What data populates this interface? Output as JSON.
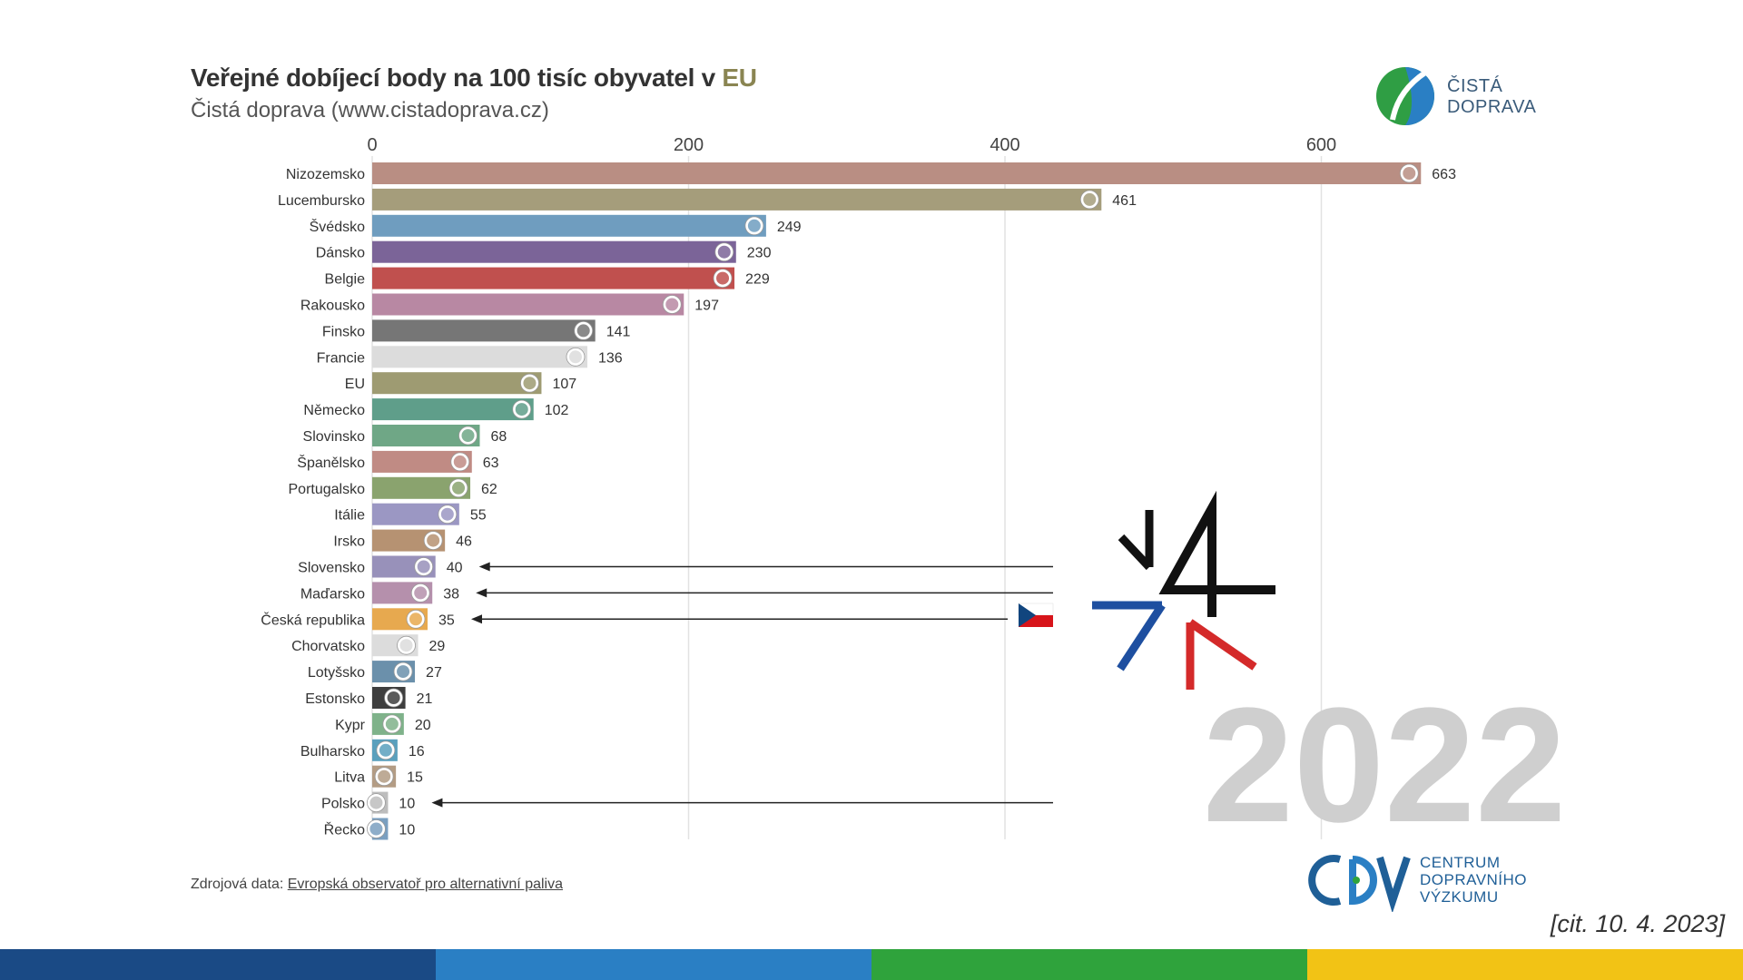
{
  "header": {
    "title_main": "Veřejné dobíjecí body na 100 tisíc obyvatel v ",
    "title_accent": "EU",
    "subtitle": "Čistá doprava (www.cistadoprava.cz)"
  },
  "logo_top": {
    "line1": "ČISTÁ",
    "line2": "DOPRAVA"
  },
  "chart_data": {
    "type": "bar",
    "orientation": "horizontal",
    "xlim": [
      0,
      700
    ],
    "ticks": [
      0,
      200,
      400,
      600
    ],
    "grid": true,
    "year": "2022",
    "categories": [
      "Nizozemsko",
      "Lucembursko",
      "Švédsko",
      "Dánsko",
      "Belgie",
      "Rakousko",
      "Finsko",
      "Francie",
      "EU",
      "Německo",
      "Slovinsko",
      "Španělsko",
      "Portugalsko",
      "Itálie",
      "Irsko",
      "Slovensko",
      "Maďarsko",
      "Česká republika",
      "Chorvatsko",
      "Lotyšsko",
      "Estonsko",
      "Kypr",
      "Bulharsko",
      "Litva",
      "Polsko",
      "Řecko"
    ],
    "values": [
      663,
      461,
      249,
      230,
      229,
      197,
      141,
      136,
      107,
      102,
      68,
      63,
      62,
      55,
      46,
      40,
      38,
      35,
      29,
      27,
      21,
      20,
      16,
      15,
      10,
      10
    ],
    "colors": [
      "#b98e83",
      "#a59d7b",
      "#6f9dbf",
      "#7b6498",
      "#c0504e",
      "#b888a3",
      "#767676",
      "#dcdcdc",
      "#9e9b72",
      "#5f9e8a",
      "#6fa786",
      "#c08b84",
      "#8aa36e",
      "#9b97c3",
      "#b69272",
      "#9891ba",
      "#b590ac",
      "#e7a94f",
      "#dcdcdc",
      "#6b90ab",
      "#3e3e3e",
      "#7fb28a",
      "#5aa0bd",
      "#b39c84",
      "#bdbdbd",
      "#7a9fc0"
    ],
    "highlighted": [
      "Slovensko",
      "Maďarsko",
      "Česká republika",
      "Polsko"
    ]
  },
  "footer": {
    "source_prefix": "Zdrojová data: ",
    "source_link": "Evropská observatoř pro alternativní paliva",
    "cdv_line1": "CENTRUM",
    "cdv_line2": "DOPRAVNÍHO",
    "cdv_line3": "VÝZKUMU",
    "citation": "[cit. 10. 4. 2023]",
    "stripe_colors": [
      "#1a4a85",
      "#2a7fc4",
      "#2fa33c",
      "#f2c315"
    ]
  }
}
